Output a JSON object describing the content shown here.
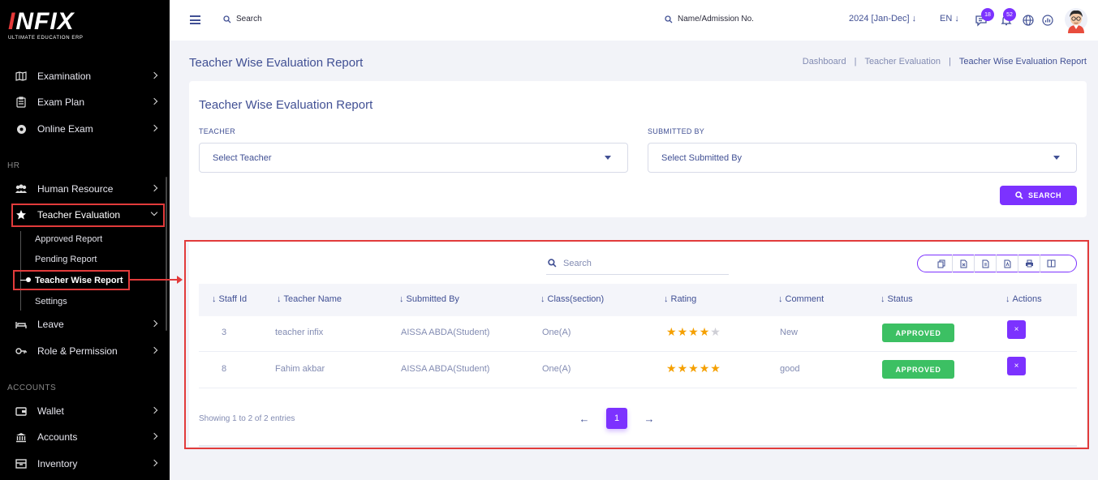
{
  "logo": {
    "brand_lead": "I",
    "brand_rest": "NFIX",
    "tagline": "ULTIMATE EDUCATION ERP"
  },
  "sidebar": {
    "items_top": [
      {
        "label": "Examination",
        "icon": "map-icon"
      },
      {
        "label": "Exam Plan",
        "icon": "clipboard-icon"
      },
      {
        "label": "Online Exam",
        "icon": "globe-icon"
      }
    ],
    "hr_label": "HR",
    "human_resource": "Human Resource",
    "teacher_evaluation": "Teacher Evaluation",
    "sub_items": [
      "Approved Report",
      "Pending Report",
      "Teacher Wise Report",
      "Settings"
    ],
    "leave": "Leave",
    "role_permission": "Role & Permission",
    "accounts_label": "ACCOUNTS",
    "wallet": "Wallet",
    "accounts": "Accounts",
    "inventory": "Inventory"
  },
  "topbar": {
    "search": "Search",
    "search_student": "Name/Admission No.",
    "year": "2024 [Jan-Dec]",
    "lang": "EN",
    "chat_count": "18",
    "notif_count": "52"
  },
  "header": {
    "title": "Teacher Wise Evaluation Report",
    "breadcrumb": [
      "Dashboard",
      "Teacher Evaluation",
      "Teacher Wise Evaluation Report"
    ]
  },
  "filter": {
    "title": "Teacher Wise Evaluation Report",
    "teacher_label": "TEACHER",
    "teacher_placeholder": "Select Teacher",
    "submitted_label": "SUBMITTED BY",
    "submitted_placeholder": "Select Submitted By",
    "search_button": "SEARCH"
  },
  "table": {
    "search_placeholder": "Search",
    "columns": [
      "Staff Id",
      "Teacher Name",
      "Submitted By",
      "Class(section)",
      "Rating",
      "Comment",
      "Status",
      "Actions"
    ],
    "rows": [
      {
        "staff_id": "3",
        "teacher": "teacher infix",
        "submitted_by": "AISSA ABDA(Student)",
        "class": "One(A)",
        "rating": 4,
        "comment": "New",
        "status": "APPROVED",
        "action": "×"
      },
      {
        "staff_id": "8",
        "teacher": "Fahim akbar",
        "submitted_by": "AISSA ABDA(Student)",
        "class": "One(A)",
        "rating": 5,
        "comment": "good",
        "status": "APPROVED",
        "action": "×"
      }
    ],
    "showing": "Showing 1 to 2 of 2 entries",
    "current_page": "1",
    "prev": "←",
    "next": "→"
  },
  "colors": {
    "accent": "#7c32ff",
    "approved": "#3cc063",
    "star": "#f5a000",
    "highlight": "#e23b3b",
    "text": "#415094"
  }
}
